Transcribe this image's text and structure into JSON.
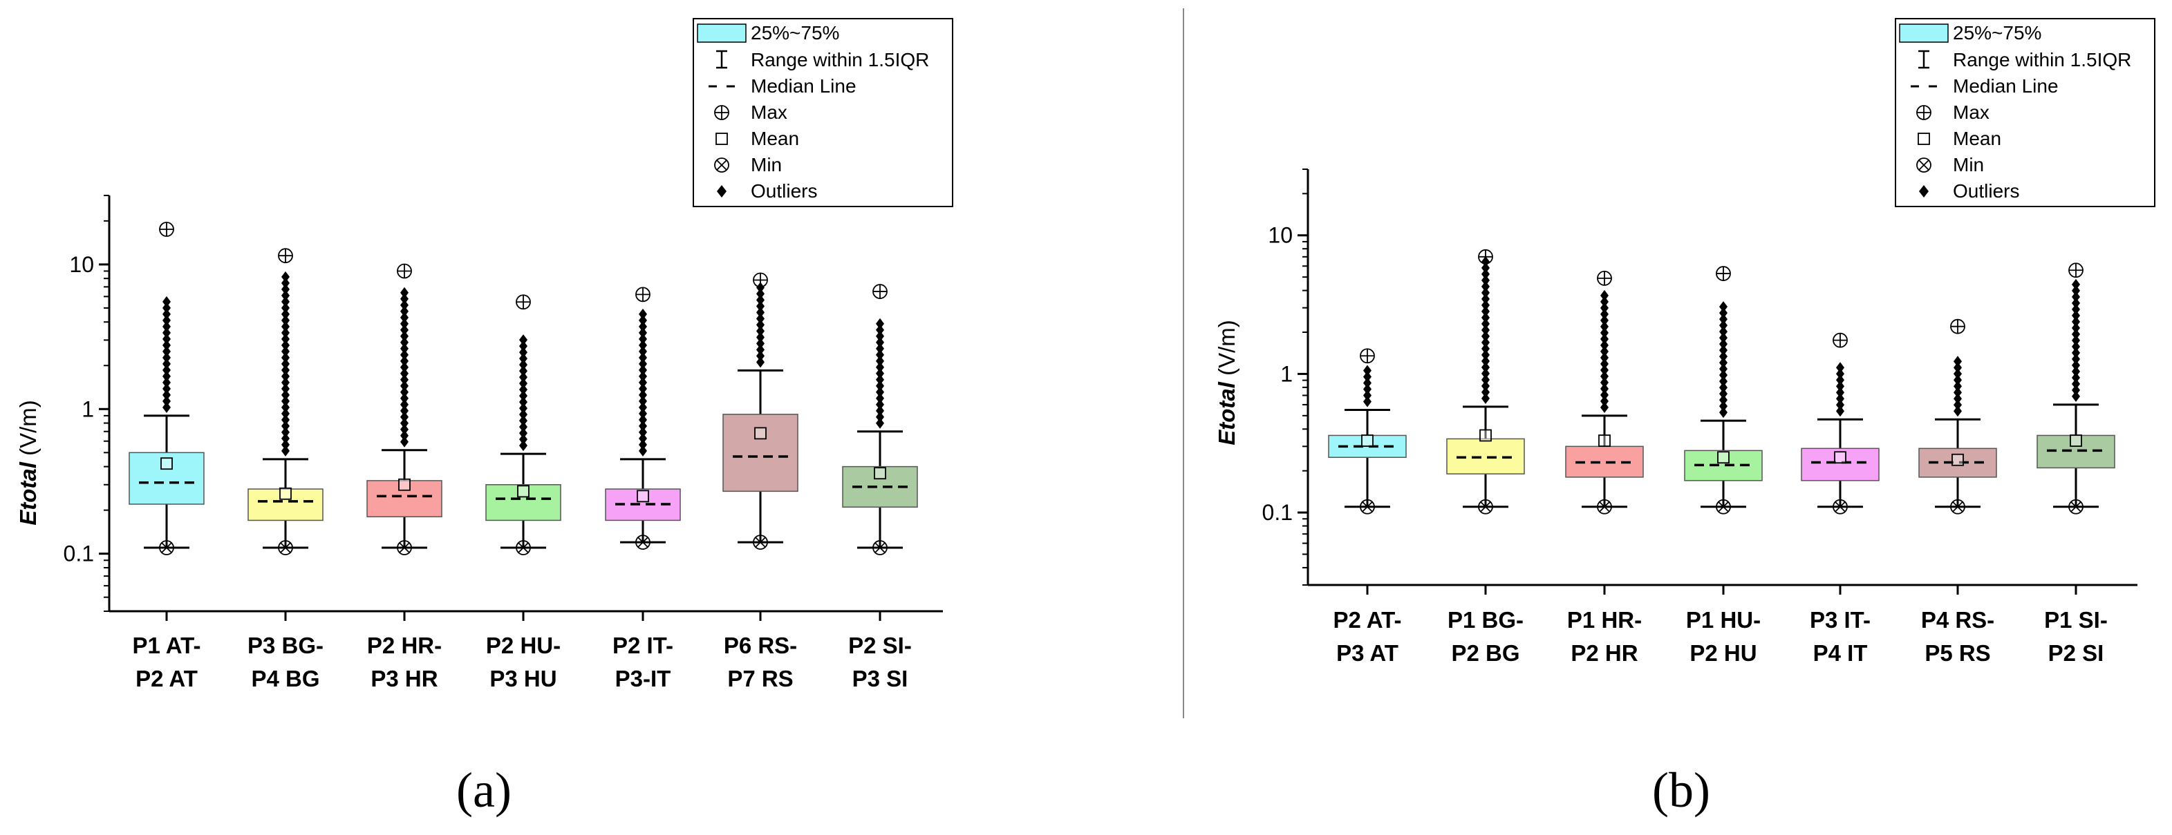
{
  "legend": {
    "iqr": "25%~75%",
    "range": "Range within 1.5IQR",
    "median": "Median Line",
    "max": "Max",
    "mean": "Mean",
    "min": "Min",
    "outliers": "Outliers"
  },
  "colors": {
    "cyan": "#9ef6fa",
    "yellow": "#fcfc9e",
    "red": "#f9a0a0",
    "green": "#a6f29f",
    "magenta": "#f6a2f6",
    "brown": "#d2a8a8",
    "olive": "#aacaa2"
  },
  "chart_data": [
    {
      "type": "box",
      "panel_label": "(a)",
      "ylabel_italic": "Etotal",
      "ylabel_unit": " (V/m)",
      "yscale": "log",
      "ylim": [
        0.04,
        30
      ],
      "yticks": [
        {
          "v": 0.1,
          "label": "0.1"
        },
        {
          "v": 1,
          "label": "1"
        },
        {
          "v": 10,
          "label": "10"
        }
      ],
      "series": [
        {
          "line1": "P1 AT-",
          "line2": "P2 AT",
          "color": "#9ef6fa",
          "q1": 0.22,
          "median": 0.31,
          "q3": 0.5,
          "mean": 0.42,
          "wlow": 0.11,
          "whigh": 0.9,
          "min": 0.11,
          "max": 17.5,
          "out_to": 5.8
        },
        {
          "line1": "P3 BG-",
          "line2": "P4 BG",
          "color": "#fcfc9e",
          "q1": 0.17,
          "median": 0.23,
          "q3": 0.28,
          "mean": 0.26,
          "wlow": 0.11,
          "whigh": 0.45,
          "min": 0.11,
          "max": 11.5,
          "out_to": 8.5
        },
        {
          "line1": "P2 HR-",
          "line2": "P3 HR",
          "color": "#f9a0a0",
          "q1": 0.18,
          "median": 0.25,
          "q3": 0.32,
          "mean": 0.3,
          "wlow": 0.11,
          "whigh": 0.52,
          "min": 0.11,
          "max": 9.0,
          "out_to": 7.0
        },
        {
          "line1": "P2 HU-",
          "line2": "P3 HU",
          "color": "#a6f29f",
          "q1": 0.17,
          "median": 0.24,
          "q3": 0.3,
          "mean": 0.27,
          "wlow": 0.11,
          "whigh": 0.49,
          "min": 0.11,
          "max": 5.5,
          "out_to": 3.0
        },
        {
          "line1": "P2 IT-",
          "line2": "P3-IT",
          "color": "#f6a2f6",
          "q1": 0.17,
          "median": 0.22,
          "q3": 0.28,
          "mean": 0.25,
          "wlow": 0.12,
          "whigh": 0.45,
          "min": 0.12,
          "max": 6.2,
          "out_to": 4.8
        },
        {
          "line1": "P6 RS-",
          "line2": "P7 RS",
          "color": "#d2a8a8",
          "q1": 0.27,
          "median": 0.47,
          "q3": 0.92,
          "mean": 0.68,
          "wlow": 0.12,
          "whigh": 1.85,
          "min": 0.12,
          "max": 7.8,
          "out_to": 7.5
        },
        {
          "line1": "P2 SI-",
          "line2": "P3 SI",
          "color": "#aacaa2",
          "q1": 0.21,
          "median": 0.29,
          "q3": 0.4,
          "mean": 0.36,
          "wlow": 0.11,
          "whigh": 0.7,
          "min": 0.11,
          "max": 6.5,
          "out_to": 4.0
        }
      ]
    },
    {
      "type": "box",
      "panel_label": "(b)",
      "ylabel_italic": "Etotal",
      "ylabel_unit": " (V/m)",
      "yscale": "log",
      "ylim": [
        0.03,
        30
      ],
      "yticks": [
        {
          "v": 0.1,
          "label": "0.1"
        },
        {
          "v": 1,
          "label": "1"
        },
        {
          "v": 10,
          "label": "10"
        }
      ],
      "series": [
        {
          "line1": "P2 AT-",
          "line2": "P3 AT",
          "color": "#9ef6fa",
          "q1": 0.25,
          "median": 0.3,
          "q3": 0.36,
          "mean": 0.33,
          "wlow": 0.11,
          "whigh": 0.55,
          "min": 0.11,
          "max": 1.35,
          "out_to": 1.1
        },
        {
          "line1": "P1 BG-",
          "line2": "P2 BG",
          "color": "#fcfc9e",
          "q1": 0.19,
          "median": 0.25,
          "q3": 0.34,
          "mean": 0.36,
          "wlow": 0.11,
          "whigh": 0.58,
          "min": 0.11,
          "max": 7.0,
          "out_to": 7.0
        },
        {
          "line1": "P1 HR-",
          "line2": "P2 HR",
          "color": "#f9a0a0",
          "q1": 0.18,
          "median": 0.23,
          "q3": 0.3,
          "mean": 0.33,
          "wlow": 0.11,
          "whigh": 0.5,
          "min": 0.11,
          "max": 4.9,
          "out_to": 4.0
        },
        {
          "line1": "P1 HU-",
          "line2": "P2 HU",
          "color": "#a6f29f",
          "q1": 0.17,
          "median": 0.22,
          "q3": 0.28,
          "mean": 0.25,
          "wlow": 0.11,
          "whigh": 0.46,
          "min": 0.11,
          "max": 5.3,
          "out_to": 3.1
        },
        {
          "line1": "P3 IT-",
          "line2": "P4 IT",
          "color": "#f6a2f6",
          "q1": 0.17,
          "median": 0.23,
          "q3": 0.29,
          "mean": 0.25,
          "wlow": 0.11,
          "whigh": 0.47,
          "min": 0.11,
          "max": 1.75,
          "out_to": 1.2
        },
        {
          "line1": "P4 RS-",
          "line2": "P5 RS",
          "color": "#d2a8a8",
          "q1": 0.18,
          "median": 0.23,
          "q3": 0.29,
          "mean": 0.24,
          "wlow": 0.11,
          "whigh": 0.47,
          "min": 0.11,
          "max": 2.2,
          "out_to": 1.3
        },
        {
          "line1": "P1 SI-",
          "line2": "P2 SI",
          "color": "#aacaa2",
          "q1": 0.21,
          "median": 0.28,
          "q3": 0.36,
          "mean": 0.33,
          "wlow": 0.11,
          "whigh": 0.6,
          "min": 0.11,
          "max": 5.6,
          "out_to": 4.7
        }
      ]
    }
  ]
}
